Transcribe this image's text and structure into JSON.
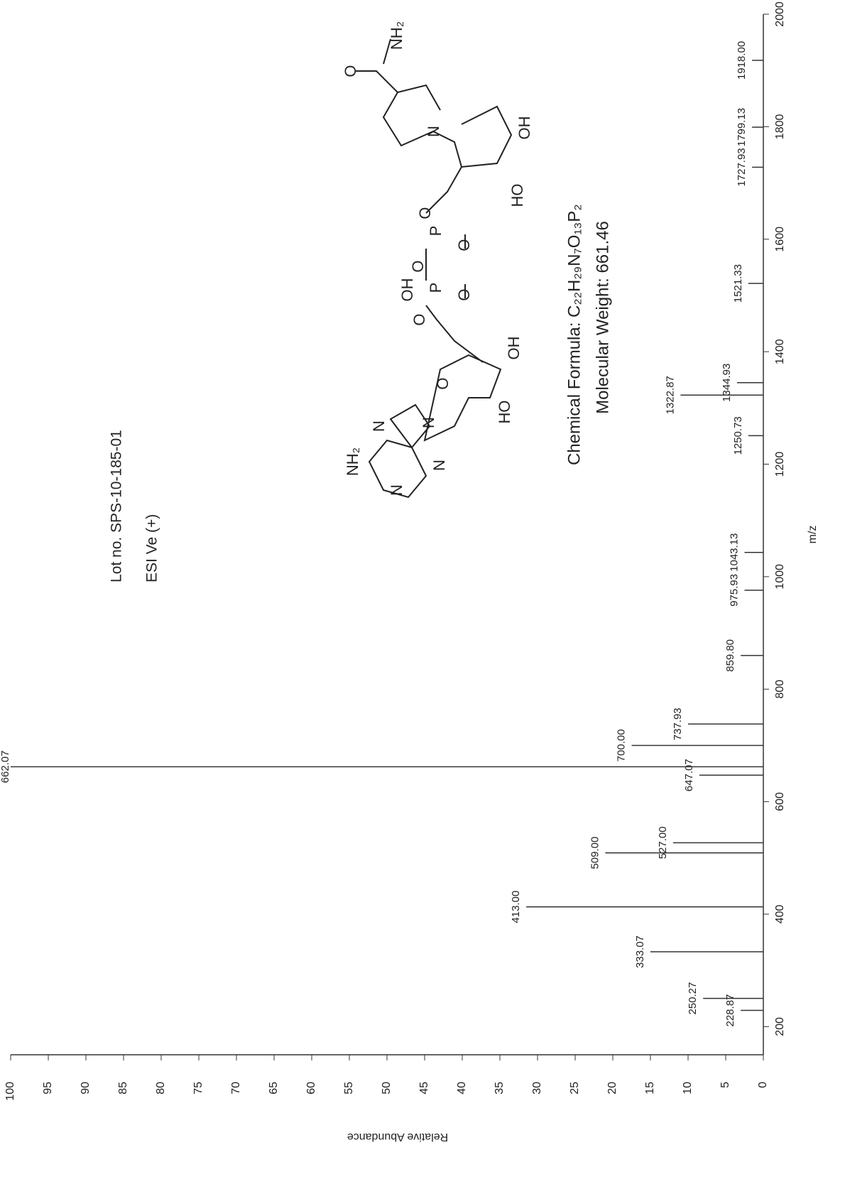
{
  "chart_data": {
    "type": "stem",
    "x_label": "m/z",
    "y_label": "Relative Abundance",
    "x": [
      228.87,
      250.27,
      333.07,
      413.0,
      509.0,
      527.0,
      647.07,
      662.07,
      700.0,
      737.93,
      859.8,
      975.93,
      1043.13,
      1250.73,
      1322.87,
      1344.93,
      1521.33,
      1727.93,
      1799.13,
      1918.0
    ],
    "x_labels": [
      "228.87",
      "250.27",
      "333.07",
      "413.00",
      "509.00",
      "527.00",
      "647.07",
      "662.07",
      "700.00",
      "737.93",
      "859.80",
      "975.93",
      "1043.13",
      "1250.73",
      "1322.87",
      "1344.93",
      "1521.33",
      "1727.93",
      "1799.13",
      "1918.00"
    ],
    "values": [
      3,
      8,
      15,
      31.5,
      21,
      12,
      8.5,
      100,
      17.5,
      10,
      3,
      2.5,
      2.5,
      2,
      11,
      3.5,
      2,
      1.5,
      1.5,
      1.5
    ],
    "color": "#333333",
    "xlim": [
      150,
      2000
    ],
    "xticks": [
      200,
      400,
      600,
      800,
      1000,
      1200,
      1400,
      1600,
      1800,
      2000
    ],
    "ylim": [
      0,
      100
    ],
    "yticks": [
      0,
      5,
      10,
      15,
      20,
      25,
      30,
      35,
      40,
      45,
      50,
      55,
      60,
      65,
      70,
      75,
      80,
      85,
      90,
      95,
      100
    ],
    "annotations": [
      "Lot no. SPS-10-185-01",
      "ESI Ve (+)",
      "Chemical Formula: C₂₂H₂₉N₇O₁₃P₂",
      "Molecular Weight: 661.46"
    ],
    "structure": {
      "atoms": [
        "NH₂",
        "N",
        "N",
        "N",
        "N",
        "O",
        "HO",
        "OH",
        "O",
        "OH",
        "P",
        "O",
        "O",
        "P",
        "O",
        "O",
        "HO",
        "OH",
        "N",
        "O",
        "NH₂"
      ]
    }
  }
}
